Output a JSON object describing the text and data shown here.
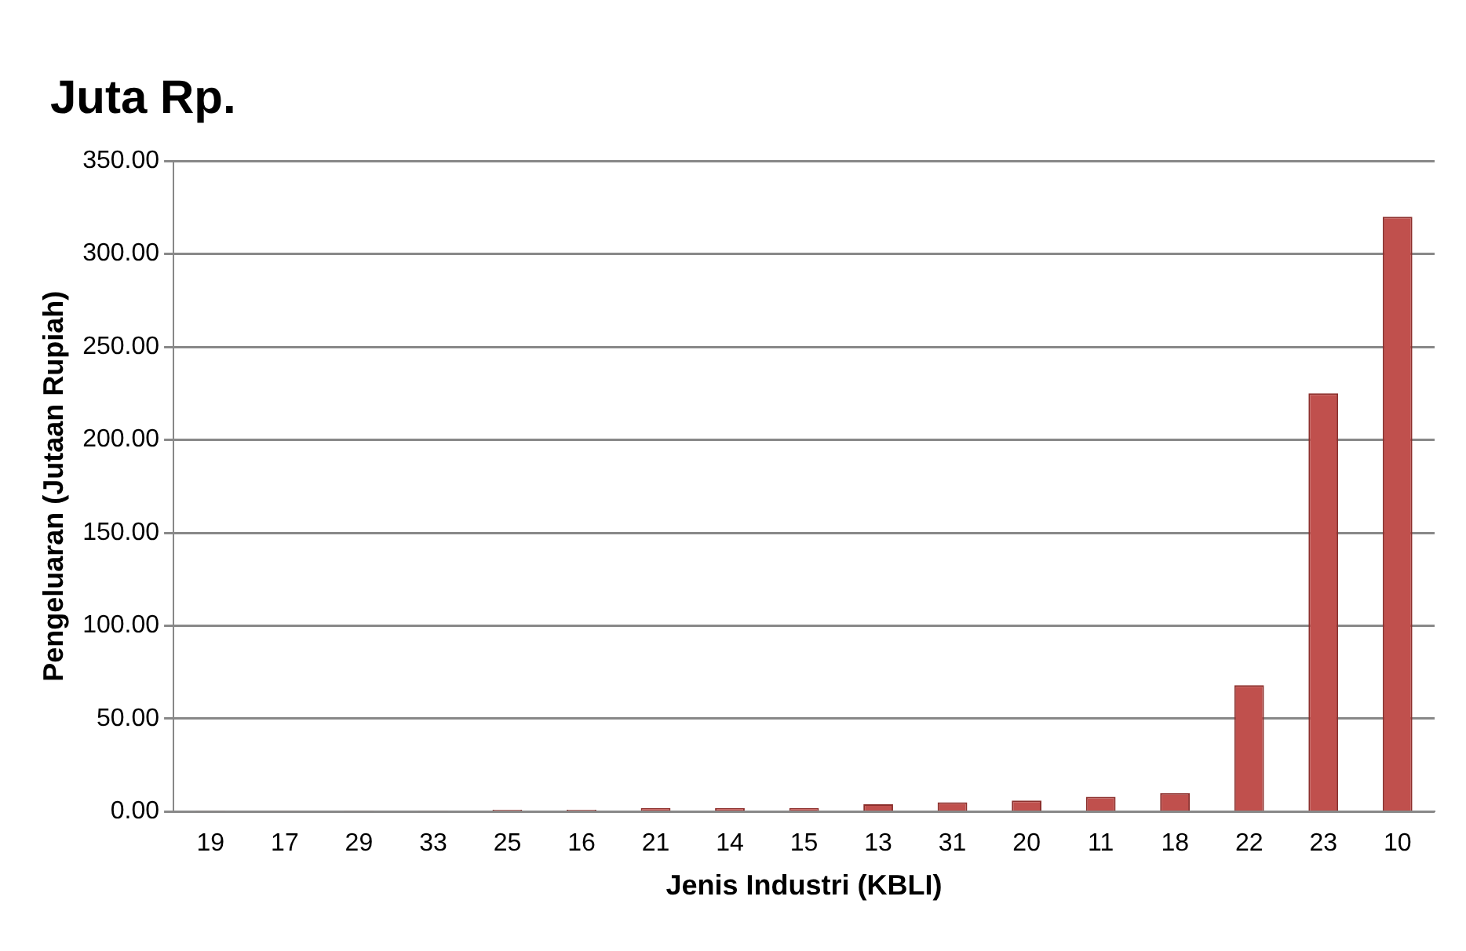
{
  "chart_data": {
    "type": "bar",
    "title": "Juta Rp.",
    "xlabel": "Jenis Industri (KBLI)",
    "ylabel": "Pengeluaran (Jutaan Rupiah)",
    "categories": [
      "19",
      "17",
      "29",
      "33",
      "25",
      "16",
      "21",
      "14",
      "15",
      "13",
      "31",
      "20",
      "11",
      "18",
      "22",
      "23",
      "10"
    ],
    "values": [
      0.5,
      0.5,
      0.5,
      0.5,
      1,
      1,
      2,
      2,
      2,
      4,
      5,
      6,
      8,
      10,
      68,
      225,
      320
    ],
    "color": "#c0504d",
    "ylim": [
      0,
      350
    ],
    "yticks": [
      {
        "value": 0,
        "label": "0.00"
      },
      {
        "value": 50,
        "label": "50.00"
      },
      {
        "value": 100,
        "label": "100.00"
      },
      {
        "value": 150,
        "label": "150.00"
      },
      {
        "value": 200,
        "label": "200.00"
      },
      {
        "value": 250,
        "label": "250.00"
      },
      {
        "value": 300,
        "label": "300.00"
      },
      {
        "value": 350,
        "label": "350.00"
      }
    ],
    "grid": "y",
    "legend": false
  }
}
